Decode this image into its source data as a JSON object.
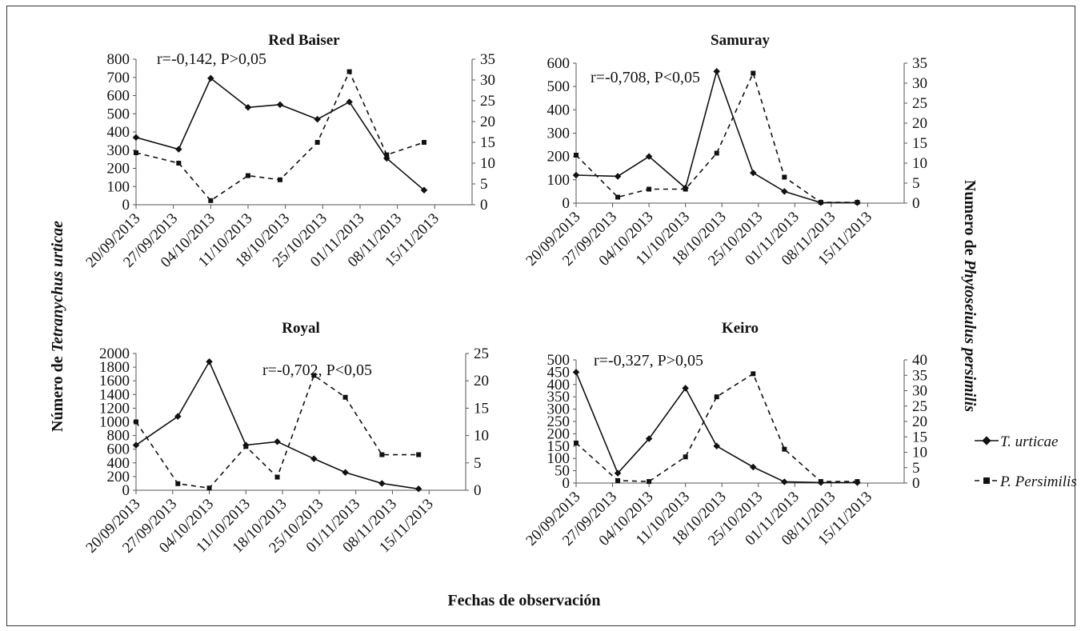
{
  "chart_data": [
    {
      "type": "line",
      "title": "Red Baiser",
      "annotation": "r=-0,142, P>0,05",
      "x": [
        "20/09/2013",
        "27/09/2013",
        "04/10/2013",
        "11/10/2013",
        "18/10/2013",
        "25/10/2013",
        "01/11/2013",
        "08/11/2013",
        "15/11/2013"
      ],
      "ylim": [
        0,
        800
      ],
      "yticks": [
        0,
        100,
        200,
        300,
        400,
        500,
        600,
        700,
        800
      ],
      "y2lim": [
        0,
        35
      ],
      "y2ticks": [
        0,
        5,
        10,
        15,
        20,
        25,
        30,
        35
      ],
      "series": [
        {
          "name": "T. urticae",
          "axis": "left",
          "x": [
            "20/09/2013",
            "28/09/2013",
            "04/10/2013",
            "11/10/2013",
            "17/10/2013",
            "24/10/2013",
            "30/10/2013",
            "06/11/2013",
            "13/11/2013"
          ],
          "values": [
            370,
            305,
            695,
            535,
            550,
            470,
            565,
            255,
            80
          ]
        },
        {
          "name": "P. Persimilis",
          "axis": "right",
          "x": [
            "20/09/2013",
            "28/09/2013",
            "04/10/2013",
            "11/10/2013",
            "17/10/2013",
            "24/10/2013",
            "30/10/2013",
            "06/11/2013",
            "13/11/2013"
          ],
          "values": [
            12.5,
            10,
            1,
            7,
            6,
            15,
            32,
            12,
            15
          ]
        }
      ]
    },
    {
      "type": "line",
      "title": "Samuray",
      "annotation": "r=-0,708, P<0,05",
      "x": [
        "20/09/2013",
        "27/09/2013",
        "04/10/2013",
        "11/10/2013",
        "18/10/2013",
        "25/10/2013",
        "01/11/2013",
        "08/11/2013",
        "15/11/2013"
      ],
      "ylim": [
        0,
        600
      ],
      "yticks": [
        0,
        100,
        200,
        300,
        400,
        500,
        600
      ],
      "y2lim": [
        0,
        35
      ],
      "y2ticks": [
        0,
        5,
        10,
        15,
        20,
        25,
        30,
        35
      ],
      "series": [
        {
          "name": "T. urticae",
          "axis": "left",
          "x": [
            "20/09/2013",
            "28/09/2013",
            "04/10/2013",
            "11/10/2013",
            "17/10/2013",
            "24/10/2013",
            "30/10/2013",
            "06/11/2013",
            "13/11/2013"
          ],
          "values": [
            120,
            115,
            200,
            65,
            565,
            130,
            50,
            2,
            2
          ]
        },
        {
          "name": "P. Persimilis",
          "axis": "right",
          "x": [
            "20/09/2013",
            "28/09/2013",
            "04/10/2013",
            "11/10/2013",
            "17/10/2013",
            "24/10/2013",
            "30/10/2013",
            "06/11/2013",
            "13/11/2013"
          ],
          "values": [
            12,
            1.5,
            3.5,
            3.5,
            12.5,
            32.5,
            6.5,
            0.2,
            0.2
          ]
        }
      ]
    },
    {
      "type": "line",
      "title": "Royal",
      "annotation": "r=-0,702, P<0,05",
      "x": [
        "20/09/2013",
        "27/09/2013",
        "04/10/2013",
        "11/10/2013",
        "18/10/2013",
        "25/10/2013",
        "01/11/2013",
        "08/11/2013",
        "15/11/2013"
      ],
      "ylim": [
        0,
        2000
      ],
      "yticks": [
        0,
        200,
        400,
        600,
        800,
        1000,
        1200,
        1400,
        1600,
        1800,
        2000
      ],
      "y2lim": [
        0,
        25
      ],
      "y2ticks": [
        0,
        5,
        10,
        15,
        20,
        25
      ],
      "series": [
        {
          "name": "T. urticae",
          "axis": "left",
          "x": [
            "20/09/2013",
            "28/09/2013",
            "04/10/2013",
            "11/10/2013",
            "17/10/2013",
            "24/10/2013",
            "30/10/2013",
            "06/11/2013",
            "13/11/2013"
          ],
          "values": [
            660,
            1080,
            1880,
            660,
            710,
            460,
            260,
            100,
            20
          ]
        },
        {
          "name": "P. Persimilis",
          "axis": "right",
          "x": [
            "20/09/2013",
            "28/09/2013",
            "04/10/2013",
            "11/10/2013",
            "17/10/2013",
            "24/10/2013",
            "30/10/2013",
            "06/11/2013",
            "13/11/2013"
          ],
          "values": [
            12.5,
            1.2,
            0.4,
            8,
            2.4,
            21,
            17,
            6.5,
            6.5
          ]
        }
      ]
    },
    {
      "type": "line",
      "title": "Keiro",
      "annotation": "r=-0,327, P>0,05",
      "x": [
        "20/09/2013",
        "27/09/2013",
        "04/10/2013",
        "11/10/2013",
        "18/10/2013",
        "25/10/2013",
        "01/11/2013",
        "08/11/2013",
        "15/11/2013"
      ],
      "ylim": [
        0,
        500
      ],
      "yticks": [
        0,
        50,
        100,
        150,
        200,
        250,
        300,
        350,
        400,
        450,
        500
      ],
      "y2lim": [
        0,
        40
      ],
      "y2ticks": [
        0,
        5,
        10,
        15,
        20,
        25,
        30,
        35,
        40
      ],
      "series": [
        {
          "name": "T. urticae",
          "axis": "left",
          "x": [
            "20/09/2013",
            "28/09/2013",
            "04/10/2013",
            "11/10/2013",
            "17/10/2013",
            "24/10/2013",
            "30/10/2013",
            "06/11/2013",
            "13/11/2013"
          ],
          "values": [
            450,
            40,
            180,
            385,
            150,
            65,
            5,
            2,
            2
          ]
        },
        {
          "name": "P. Persimilis",
          "axis": "right",
          "x": [
            "20/09/2013",
            "28/09/2013",
            "04/10/2013",
            "11/10/2013",
            "17/10/2013",
            "24/10/2013",
            "30/10/2013",
            "06/11/2013",
            "13/11/2013"
          ],
          "values": [
            13,
            0.8,
            0.5,
            8.5,
            28,
            35.5,
            11,
            0.5,
            0.5
          ]
        }
      ]
    }
  ],
  "left_axis_title_prefix": "Número de ",
  "left_axis_title_species": "Tetranychus urticae",
  "right_axis_title_prefix": "Numero de ",
  "right_axis_title_species": "Phytoseiulus persimilis",
  "x_axis_title": "Fechas de observación",
  "legend": [
    {
      "label": "T. urticae",
      "style": "solid",
      "marker": "diamond"
    },
    {
      "label": "P. Persimilis",
      "style": "dashed",
      "marker": "square"
    }
  ]
}
